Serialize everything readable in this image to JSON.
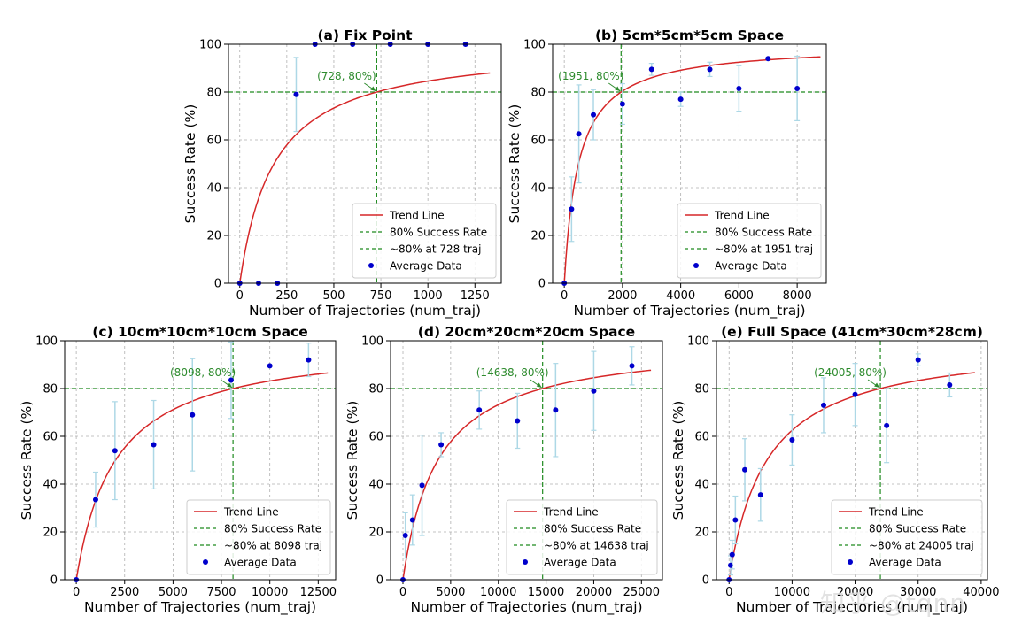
{
  "watermark": "知乎 @tqnn",
  "chart_data": [
    {
      "type": "scatter",
      "title": "(a) Fix Point",
      "xlabel": "Number of Trajectories (num_traj)",
      "ylabel": "Success Rate (%)",
      "xlim": [
        -60,
        1390
      ],
      "ylim": [
        0,
        100
      ],
      "xticks": [
        0,
        250,
        500,
        750,
        1000,
        1250
      ],
      "yticks": [
        0,
        20,
        40,
        60,
        80,
        100
      ],
      "threshold_x": 728,
      "annotation": "(728, 80%)",
      "trend": {
        "k": 182,
        "xmax": 1330
      },
      "points": [
        {
          "x": 0,
          "y": 0,
          "err": 0
        },
        {
          "x": 100,
          "y": 0,
          "err": 0
        },
        {
          "x": 200,
          "y": 0,
          "err": 0
        },
        {
          "x": 300,
          "y": 79,
          "err": 15.5
        },
        {
          "x": 400,
          "y": 100,
          "err": 0
        },
        {
          "x": 600,
          "y": 100,
          "err": 0
        },
        {
          "x": 800,
          "y": 100,
          "err": 0
        },
        {
          "x": 1000,
          "y": 100,
          "err": 0
        },
        {
          "x": 1200,
          "y": 100,
          "err": 0
        }
      ],
      "legend": [
        "Trend Line",
        "80% Success Rate",
        "~80% at 728 traj",
        "Average Data"
      ]
    },
    {
      "type": "scatter",
      "title": "(b) 5cm*5cm*5cm Space",
      "xlabel": "Number of Trajectories (num_traj)",
      "ylabel": "Success Rate (%)",
      "xlim": [
        -400,
        9000
      ],
      "ylim": [
        0,
        100
      ],
      "xticks": [
        0,
        2000,
        4000,
        6000,
        8000
      ],
      "yticks": [
        0,
        20,
        40,
        60,
        80,
        100
      ],
      "threshold_x": 1951,
      "annotation": "(1951, 80%)",
      "trend": {
        "k": 488,
        "xmax": 8800
      },
      "points": [
        {
          "x": 0,
          "y": 0,
          "err": 0
        },
        {
          "x": 250,
          "y": 31,
          "err": 13.5
        },
        {
          "x": 500,
          "y": 62.5,
          "err": 20.5
        },
        {
          "x": 1000,
          "y": 70.5,
          "err": 10.5
        },
        {
          "x": 2000,
          "y": 75,
          "err": 8.5
        },
        {
          "x": 3000,
          "y": 89.5,
          "err": 2.5
        },
        {
          "x": 4000,
          "y": 77,
          "err": 3
        },
        {
          "x": 5000,
          "y": 89.5,
          "err": 3
        },
        {
          "x": 6000,
          "y": 81.5,
          "err": 9.5
        },
        {
          "x": 7000,
          "y": 94,
          "err": 0
        },
        {
          "x": 8000,
          "y": 81.5,
          "err": 13.5
        }
      ],
      "legend": [
        "Trend Line",
        "80% Success Rate",
        "~80% at 1951 traj",
        "Average Data"
      ]
    },
    {
      "type": "scatter",
      "title": "(c) 10cm*10cm*10cm Space",
      "xlabel": "Number of Trajectories (num_traj)",
      "ylabel": "Success Rate (%)",
      "xlim": [
        -600,
        13400
      ],
      "ylim": [
        0,
        100
      ],
      "xticks": [
        0,
        2500,
        5000,
        7500,
        10000,
        12500
      ],
      "yticks": [
        0,
        20,
        40,
        60,
        80,
        100
      ],
      "threshold_x": 8098,
      "annotation": "(8098, 80%)",
      "trend": {
        "k": 2025,
        "xmax": 13000
      },
      "points": [
        {
          "x": 0,
          "y": 0,
          "err": 0
        },
        {
          "x": 1000,
          "y": 33.5,
          "err": 11.5
        },
        {
          "x": 2000,
          "y": 54,
          "err": 20.5
        },
        {
          "x": 4000,
          "y": 56.5,
          "err": 18.5
        },
        {
          "x": 6000,
          "y": 69,
          "err": 23.5
        },
        {
          "x": 8000,
          "y": 83.5,
          "err": 16
        },
        {
          "x": 10000,
          "y": 89.5,
          "err": 0
        },
        {
          "x": 12000,
          "y": 92,
          "err": 7
        }
      ],
      "legend": [
        "Trend Line",
        "80% Success Rate",
        "~80% at 8098 traj",
        "Average Data"
      ]
    },
    {
      "type": "scatter",
      "title": "(d) 20cm*20cm*20cm Space",
      "xlabel": "Number of Trajectories (num_traj)",
      "ylabel": "Success Rate (%)",
      "xlim": [
        -1300,
        27200
      ],
      "ylim": [
        0,
        100
      ],
      "xticks": [
        0,
        5000,
        10000,
        15000,
        20000,
        25000
      ],
      "yticks": [
        0,
        20,
        40,
        60,
        80,
        100
      ],
      "threshold_x": 14638,
      "annotation": "(14638, 80%)",
      "trend": {
        "k": 3660,
        "xmax": 26000
      },
      "points": [
        {
          "x": 0,
          "y": 0,
          "err": 0
        },
        {
          "x": 250,
          "y": 18.5,
          "err": 9.5
        },
        {
          "x": 1000,
          "y": 25,
          "err": 10.5
        },
        {
          "x": 2000,
          "y": 39.5,
          "err": 21
        },
        {
          "x": 4000,
          "y": 56.5,
          "err": 5
        },
        {
          "x": 8000,
          "y": 71,
          "err": 8
        },
        {
          "x": 12000,
          "y": 66.5,
          "err": 11.5
        },
        {
          "x": 16000,
          "y": 71,
          "err": 19.5
        },
        {
          "x": 20000,
          "y": 79,
          "err": 16.5
        },
        {
          "x": 24000,
          "y": 89.5,
          "err": 8
        }
      ],
      "legend": [
        "Trend Line",
        "80% Success Rate",
        "~80% at 14638 traj",
        "Average Data"
      ]
    },
    {
      "type": "scatter",
      "title": "(e) Full Space (41cm*30cm*28cm)",
      "xlabel": "Number of Trajectories (num_traj)",
      "ylabel": "Success Rate (%)",
      "xlim": [
        -2000,
        41000
      ],
      "ylim": [
        0,
        100
      ],
      "xticks": [
        0,
        10000,
        20000,
        30000,
        40000
      ],
      "yticks": [
        0,
        20,
        40,
        60,
        80,
        100
      ],
      "threshold_x": 24005,
      "annotation": "(24005, 80%)",
      "trend": {
        "k": 6000,
        "xmax": 39000
      },
      "points": [
        {
          "x": 0,
          "y": 0,
          "err": 0
        },
        {
          "x": 250,
          "y": 6,
          "err": 4
        },
        {
          "x": 500,
          "y": 10.5,
          "err": 6
        },
        {
          "x": 1000,
          "y": 25,
          "err": 10
        },
        {
          "x": 2500,
          "y": 46,
          "err": 13
        },
        {
          "x": 5000,
          "y": 35.5,
          "err": 11
        },
        {
          "x": 10000,
          "y": 58.5,
          "err": 10.5
        },
        {
          "x": 15000,
          "y": 73,
          "err": 11.5
        },
        {
          "x": 20000,
          "y": 77.5,
          "err": 13
        },
        {
          "x": 25000,
          "y": 64.5,
          "err": 15.5
        },
        {
          "x": 30000,
          "y": 92,
          "err": 2.5
        },
        {
          "x": 35000,
          "y": 81.5,
          "err": 5
        }
      ],
      "legend": [
        "Trend Line",
        "80% Success Rate",
        "~80% at 24005 traj",
        "Average Data"
      ]
    }
  ]
}
